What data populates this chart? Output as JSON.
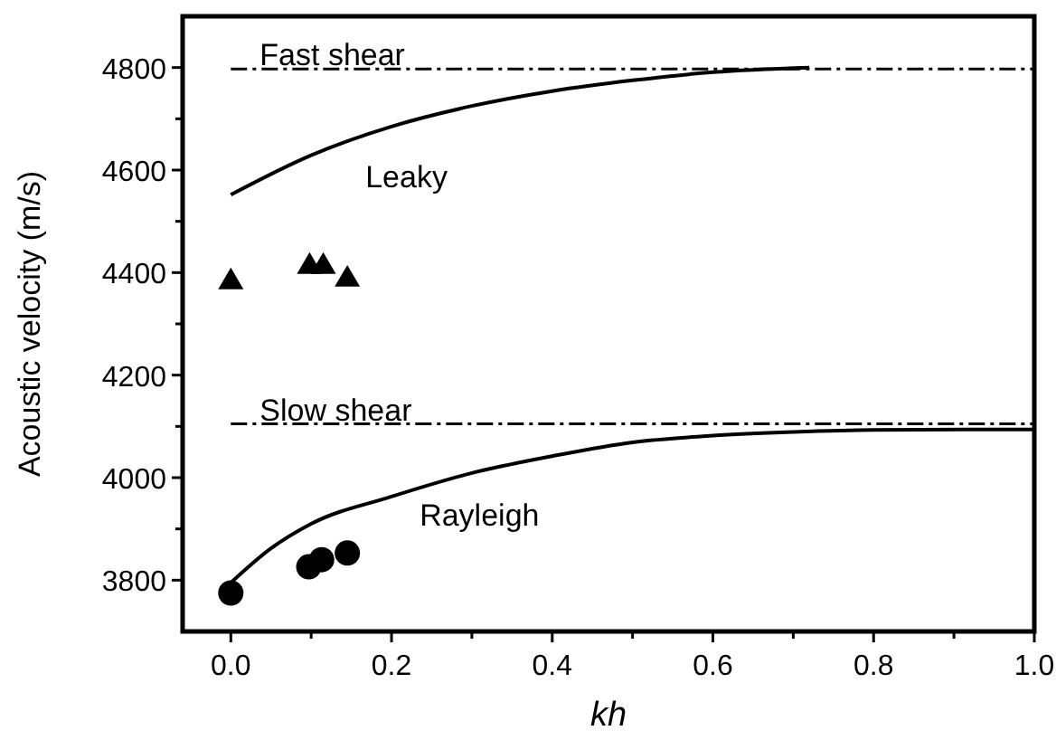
{
  "chart_data": {
    "type": "line",
    "xlabel": "kh",
    "ylabel": "Acoustic velocity (m/s)",
    "xlim": [
      -0.06,
      1.0
    ],
    "ylim": [
      3700,
      4900
    ],
    "xticks": [
      {
        "value": 0,
        "label": "0.0"
      },
      {
        "value": 0.1,
        "label": null
      },
      {
        "value": 0.2,
        "label": "0.2"
      },
      {
        "value": 0.3,
        "label": null
      },
      {
        "value": 0.4,
        "label": "0.4"
      },
      {
        "value": 0.5,
        "label": null
      },
      {
        "value": 0.6,
        "label": "0.6"
      },
      {
        "value": 0.7,
        "label": null
      },
      {
        "value": 0.8,
        "label": "0.8"
      },
      {
        "value": 0.9,
        "label": null
      },
      {
        "value": 1.0,
        "label": "1.0"
      }
    ],
    "yticks": [
      {
        "value": 3800,
        "label": "3800"
      },
      {
        "value": 3900,
        "label": null
      },
      {
        "value": 4000,
        "label": "4000"
      },
      {
        "value": 4100,
        "label": null
      },
      {
        "value": 4200,
        "label": "4200"
      },
      {
        "value": 4300,
        "label": null
      },
      {
        "value": 4400,
        "label": "4400"
      },
      {
        "value": 4500,
        "label": null
      },
      {
        "value": 4600,
        "label": "4600"
      },
      {
        "value": 4700,
        "label": null
      },
      {
        "value": 4800,
        "label": "4800"
      }
    ],
    "grid": false,
    "ref_lines": [
      {
        "axis": "y",
        "value": 4797,
        "label": "Fast shear",
        "color": "#000000",
        "line_style": "dashed"
      },
      {
        "axis": "y",
        "value": 4105,
        "label": "Slow shear",
        "color": "#000000",
        "line_style": "dashed"
      }
    ],
    "series": [
      {
        "color": "#000000",
        "marker": "none",
        "line_style": "solid",
        "x": [
          0,
          0.1,
          0.2,
          0.3,
          0.4,
          0.5,
          0.6,
          0.72
        ],
        "values": [
          4552,
          4629,
          4685,
          4725,
          4754,
          4775,
          4791,
          4800
        ]
      },
      {
        "color": "#000000",
        "marker": "none",
        "line_style": "solid",
        "x": [
          0,
          0.05,
          0.1,
          0.2,
          0.3,
          0.4,
          0.5,
          0.6,
          0.7,
          0.8,
          1.0
        ],
        "values": [
          3795,
          3862,
          3910,
          3963,
          4009,
          4042,
          4069,
          4082,
          4089,
          4093,
          4094
        ]
      },
      {
        "type": "scatter",
        "name": "Leaky",
        "color": "#000000",
        "marker": "triangle",
        "x": [
          0,
          0.098,
          0.115,
          0.145
        ],
        "values": [
          4385,
          4415,
          4415,
          4390
        ]
      },
      {
        "type": "scatter",
        "name": "Rayleigh",
        "color": "#000000",
        "marker": "circle",
        "x": [
          0,
          0.097,
          0.113,
          0.145
        ],
        "values": [
          3775,
          3826,
          3840,
          3853
        ]
      }
    ]
  }
}
